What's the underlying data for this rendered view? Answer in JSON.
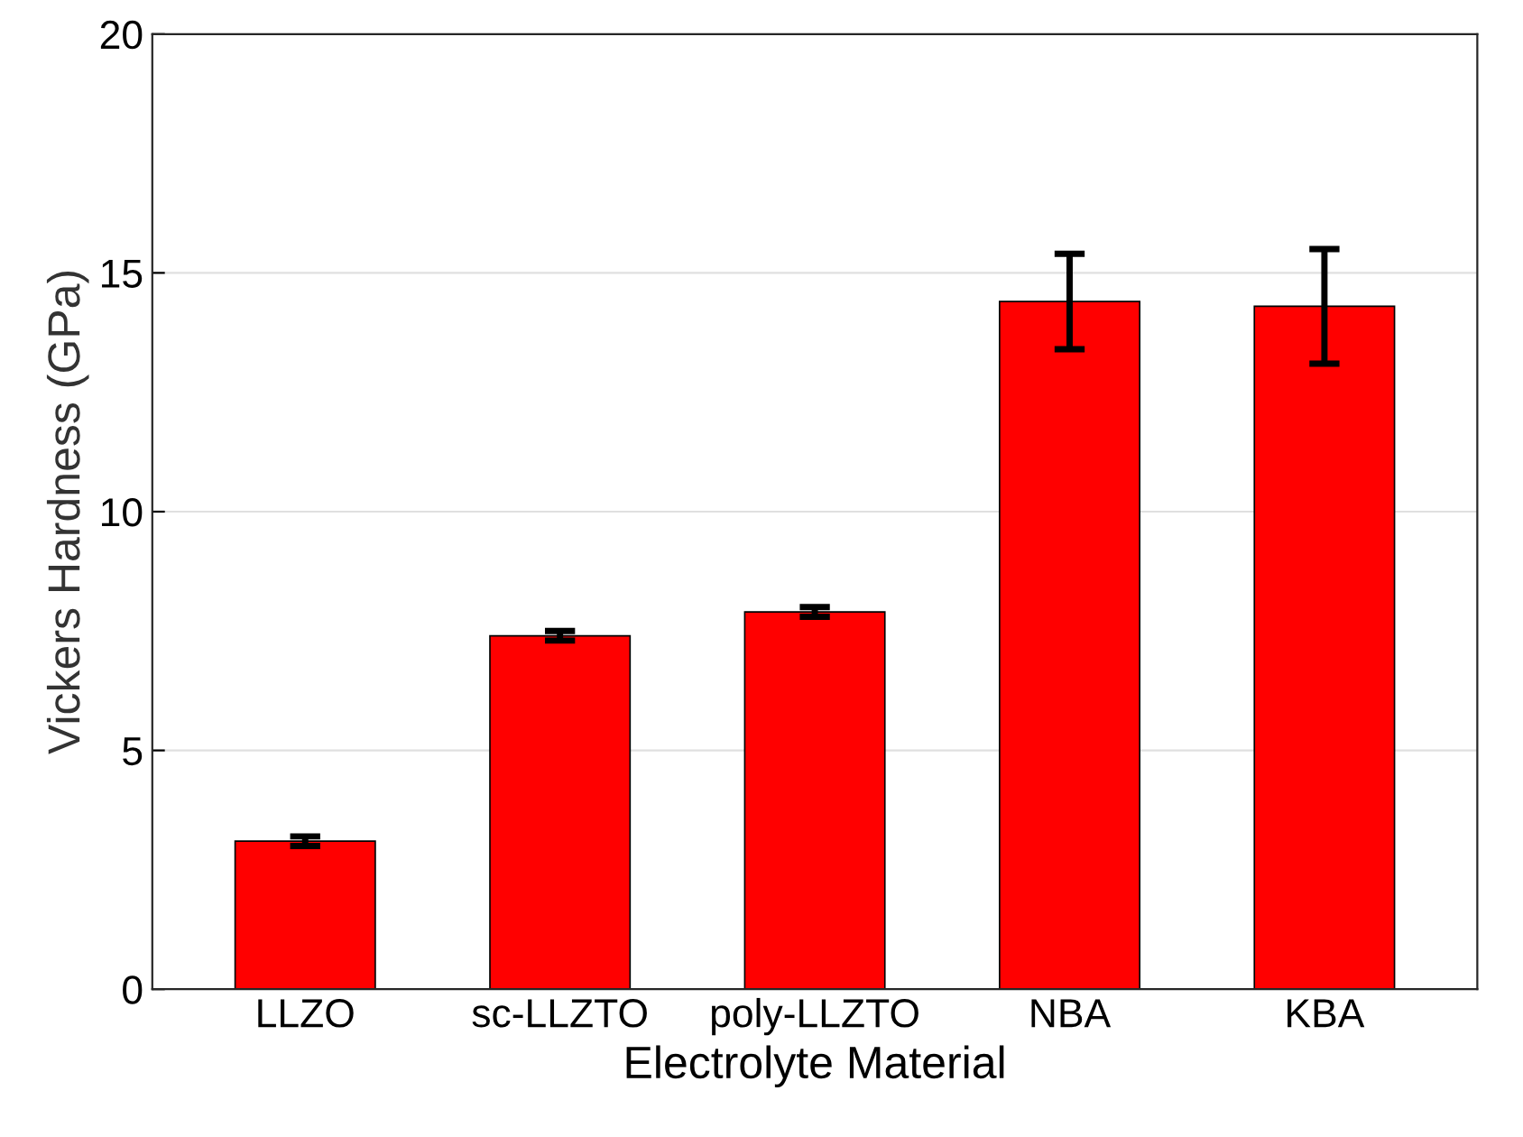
{
  "chart_data": {
    "type": "bar",
    "xlabel": "Electrolyte Material",
    "ylabel": "Vickers Hardness (GPa)",
    "categories": [
      "LLZO",
      "sc-LLZTO",
      "poly-LLZTO",
      "NBA",
      "KBA"
    ],
    "values": [
      3.1,
      7.4,
      7.9,
      14.4,
      14.3
    ],
    "errors": [
      0.1,
      0.1,
      0.1,
      [
        13.4,
        15.4
      ],
      [
        13.1,
        15.5
      ]
    ],
    "color": "#ff0000",
    "ylim": [
      0,
      20
    ],
    "yticks": [
      0,
      5,
      10,
      15,
      20
    ],
    "grid": "y"
  }
}
